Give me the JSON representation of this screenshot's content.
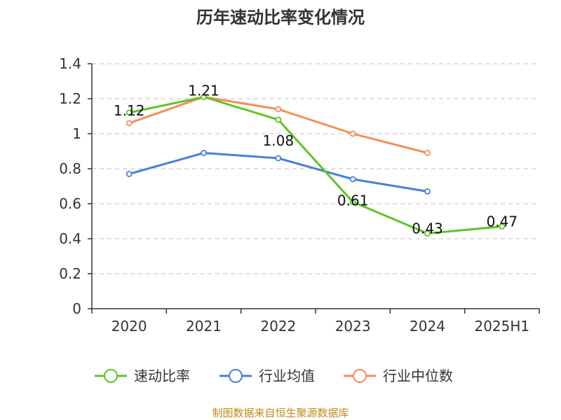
{
  "chart_data": {
    "type": "line",
    "title": "历年速动比率变化情况",
    "categories": [
      "2020",
      "2021",
      "2022",
      "2023",
      "2024",
      "2025H1"
    ],
    "ylim": [
      0,
      1.4
    ],
    "yticks": [
      "0",
      "0.2",
      "0.4",
      "0.6",
      "0.8",
      "1",
      "1.2",
      "1.4"
    ],
    "grid": true,
    "legend_position": "bottom",
    "series": [
      {
        "name": "速动比率",
        "color": "#5cc623",
        "values": [
          1.12,
          1.21,
          1.08,
          0.61,
          0.43,
          0.47
        ],
        "labels": [
          "1.12",
          "1.21",
          "1.08",
          "0.61",
          "0.43",
          "0.47"
        ]
      },
      {
        "name": "行业均值",
        "color": "#4a80d8",
        "values": [
          0.77,
          0.89,
          0.86,
          0.74,
          0.67,
          null
        ]
      },
      {
        "name": "行业中位数",
        "color": "#f68c56",
        "values": [
          1.06,
          1.21,
          1.14,
          1.0,
          0.89,
          null
        ]
      }
    ]
  },
  "source": {
    "text": "制图数据来自恒生聚源数据库",
    "color": "#c08a1a"
  }
}
